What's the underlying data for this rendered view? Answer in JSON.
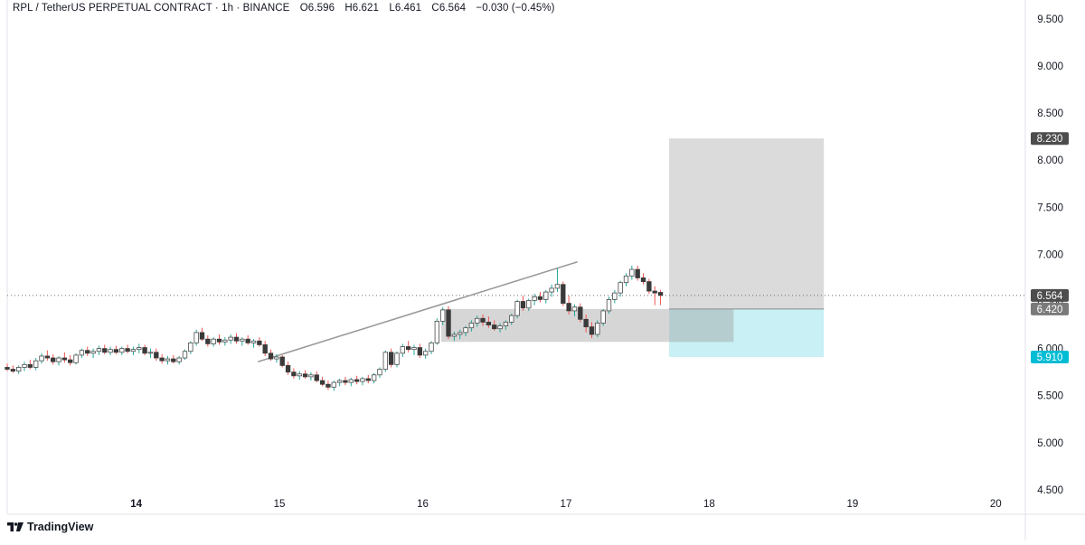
{
  "legend": {
    "symbol": "RPL / TetherUS PERPETUAL CONTRACT · 1h · BINANCE",
    "open_key": "O",
    "open": "6.596",
    "high_key": "H",
    "high": "6.621",
    "low_key": "L",
    "low": "6.461",
    "close_key": "C",
    "close": "6.564",
    "change": "−0.030 (−0.45%)"
  },
  "brand": {
    "name": "TradingView",
    "icon": "tradingview-logo-icon"
  },
  "colors": {
    "up_body": "#ffffff",
    "up_border": "#4a4a4a",
    "up_wick": "#26a69a",
    "down_body": "#3a3a3a",
    "down_wick": "#ef5350",
    "target_zone": "#d9d9d9",
    "stop_zone": "#c8f0f5",
    "range_box": "#d4d4d4",
    "price_tag_dark": "#4d4d4d",
    "price_tag_cyan": "#00bcd4",
    "trendline": "#9a9a9a",
    "grid": "#e8e8e8"
  },
  "chart_data": {
    "type": "candlestick",
    "instrument": "RPL / TetherUS PERPETUAL CONTRACT",
    "interval": "1h",
    "exchange": "BINANCE",
    "xlim": [
      13.1,
      20.2
    ],
    "ylim": [
      4.25,
      9.7
    ],
    "x_ticks": [
      {
        "value": 14,
        "label": "14"
      },
      {
        "value": 15,
        "label": "15"
      },
      {
        "value": 16,
        "label": "16"
      },
      {
        "value": 17,
        "label": "17"
      },
      {
        "value": 18,
        "label": "18"
      },
      {
        "value": 19,
        "label": "19"
      },
      {
        "value": 20,
        "label": "20"
      }
    ],
    "y_ticks": [
      "4.500",
      "5.000",
      "5.500",
      "6.000",
      "6.500",
      "7.000",
      "7.500",
      "8.000",
      "8.500",
      "9.000",
      "9.500"
    ],
    "y_tick_values": [
      4.5,
      5.0,
      5.5,
      6.0,
      6.5,
      7.0,
      7.5,
      8.0,
      8.5,
      9.0,
      9.5
    ],
    "candles": [
      [
        13.1,
        5.8,
        5.84,
        5.76,
        5.78
      ],
      [
        13.14,
        5.78,
        5.82,
        5.74,
        5.76
      ],
      [
        13.18,
        5.76,
        5.82,
        5.73,
        5.8
      ],
      [
        13.22,
        5.8,
        5.86,
        5.76,
        5.83
      ],
      [
        13.26,
        5.83,
        5.88,
        5.78,
        5.8
      ],
      [
        13.3,
        5.8,
        5.9,
        5.77,
        5.87
      ],
      [
        13.34,
        5.87,
        5.95,
        5.84,
        5.92
      ],
      [
        13.38,
        5.92,
        5.98,
        5.87,
        5.9
      ],
      [
        13.42,
        5.9,
        5.94,
        5.83,
        5.86
      ],
      [
        13.46,
        5.86,
        5.92,
        5.82,
        5.9
      ],
      [
        13.5,
        5.9,
        5.96,
        5.85,
        5.88
      ],
      [
        13.54,
        5.88,
        5.93,
        5.82,
        5.85
      ],
      [
        13.58,
        5.85,
        5.95,
        5.83,
        5.93
      ],
      [
        13.62,
        5.93,
        6.0,
        5.9,
        5.98
      ],
      [
        13.66,
        5.98,
        6.02,
        5.92,
        5.95
      ],
      [
        13.7,
        5.95,
        6.0,
        5.9,
        5.97
      ],
      [
        13.74,
        5.97,
        6.03,
        5.93,
        6.0
      ],
      [
        13.78,
        6.0,
        6.04,
        5.94,
        5.96
      ],
      [
        13.82,
        5.96,
        6.02,
        5.93,
        5.99
      ],
      [
        13.86,
        5.99,
        6.03,
        5.94,
        5.96
      ],
      [
        13.9,
        5.96,
        6.02,
        5.93,
        6.0
      ],
      [
        13.94,
        6.0,
        6.04,
        5.95,
        5.97
      ],
      [
        13.98,
        5.97,
        6.02,
        5.93,
        5.99
      ],
      [
        14.02,
        5.99,
        6.05,
        5.95,
        6.01
      ],
      [
        14.06,
        6.01,
        6.04,
        5.93,
        5.95
      ],
      [
        14.1,
        5.95,
        6.0,
        5.9,
        5.96
      ],
      [
        14.14,
        5.96,
        6.0,
        5.87,
        5.9
      ],
      [
        14.18,
        5.9,
        5.94,
        5.84,
        5.87
      ],
      [
        14.22,
        5.87,
        5.92,
        5.83,
        5.89
      ],
      [
        14.26,
        5.89,
        5.93,
        5.84,
        5.86
      ],
      [
        14.3,
        5.86,
        5.92,
        5.83,
        5.9
      ],
      [
        14.34,
        5.9,
        5.99,
        5.88,
        5.97
      ],
      [
        14.38,
        5.97,
        6.08,
        5.94,
        6.06
      ],
      [
        14.42,
        6.06,
        6.2,
        6.03,
        6.17
      ],
      [
        14.46,
        6.17,
        6.22,
        6.08,
        6.1
      ],
      [
        14.5,
        6.1,
        6.14,
        6.02,
        6.05
      ],
      [
        14.54,
        6.05,
        6.12,
        6.02,
        6.1
      ],
      [
        14.58,
        6.1,
        6.15,
        6.04,
        6.07
      ],
      [
        14.62,
        6.07,
        6.12,
        6.03,
        6.09
      ],
      [
        14.66,
        6.09,
        6.15,
        6.05,
        6.12
      ],
      [
        14.7,
        6.12,
        6.16,
        6.05,
        6.08
      ],
      [
        14.74,
        6.08,
        6.12,
        6.03,
        6.1
      ],
      [
        14.78,
        6.1,
        6.14,
        6.04,
        6.06
      ],
      [
        14.82,
        6.06,
        6.1,
        6.01,
        6.08
      ],
      [
        14.86,
        6.08,
        6.12,
        6.02,
        6.04
      ],
      [
        14.9,
        6.04,
        6.08,
        5.92,
        5.95
      ],
      [
        14.94,
        5.95,
        5.99,
        5.87,
        5.89
      ],
      [
        14.98,
        5.89,
        5.94,
        5.85,
        5.91
      ],
      [
        15.02,
        5.91,
        5.93,
        5.8,
        5.82
      ],
      [
        15.06,
        5.82,
        5.86,
        5.72,
        5.75
      ],
      [
        15.1,
        5.75,
        5.79,
        5.68,
        5.71
      ],
      [
        15.14,
        5.71,
        5.76,
        5.67,
        5.73
      ],
      [
        15.18,
        5.73,
        5.77,
        5.68,
        5.7
      ],
      [
        15.22,
        5.7,
        5.75,
        5.66,
        5.72
      ],
      [
        15.26,
        5.72,
        5.76,
        5.64,
        5.66
      ],
      [
        15.3,
        5.66,
        5.7,
        5.6,
        5.62
      ],
      [
        15.34,
        5.62,
        5.66,
        5.56,
        5.59
      ],
      [
        15.38,
        5.59,
        5.66,
        5.55,
        5.64
      ],
      [
        15.42,
        5.64,
        5.68,
        5.6,
        5.66
      ],
      [
        15.46,
        5.66,
        5.7,
        5.61,
        5.64
      ],
      [
        15.5,
        5.64,
        5.69,
        5.6,
        5.67
      ],
      [
        15.54,
        5.67,
        5.71,
        5.62,
        5.65
      ],
      [
        15.58,
        5.65,
        5.7,
        5.61,
        5.68
      ],
      [
        15.62,
        5.68,
        5.72,
        5.63,
        5.66
      ],
      [
        15.66,
        5.66,
        5.74,
        5.63,
        5.72
      ],
      [
        15.7,
        5.72,
        5.8,
        5.69,
        5.78
      ],
      [
        15.74,
        5.78,
        5.98,
        5.75,
        5.96
      ],
      [
        15.78,
        5.96,
        6.0,
        5.8,
        5.83
      ],
      [
        15.82,
        5.83,
        5.97,
        5.8,
        5.95
      ],
      [
        15.86,
        5.95,
        6.05,
        5.91,
        6.02
      ],
      [
        15.9,
        6.02,
        6.08,
        5.96,
        5.99
      ],
      [
        15.94,
        5.99,
        6.04,
        5.93,
        6.01
      ],
      [
        15.98,
        6.01,
        6.05,
        5.9,
        5.93
      ],
      [
        16.02,
        5.93,
        6.0,
        5.89,
        5.97
      ],
      [
        16.06,
        5.97,
        6.08,
        5.94,
        6.06
      ],
      [
        16.1,
        6.06,
        6.32,
        6.04,
        6.29
      ],
      [
        16.14,
        6.29,
        6.44,
        6.25,
        6.41
      ],
      [
        16.18,
        6.41,
        6.45,
        6.1,
        6.13
      ],
      [
        16.22,
        6.13,
        6.18,
        6.08,
        6.15
      ],
      [
        16.26,
        6.15,
        6.2,
        6.1,
        6.17
      ],
      [
        16.3,
        6.17,
        6.24,
        6.13,
        6.22
      ],
      [
        16.34,
        6.22,
        6.3,
        6.18,
        6.27
      ],
      [
        16.38,
        6.27,
        6.35,
        6.23,
        6.32
      ],
      [
        16.42,
        6.32,
        6.36,
        6.24,
        6.28
      ],
      [
        16.46,
        6.28,
        6.34,
        6.22,
        6.25
      ],
      [
        16.5,
        6.25,
        6.3,
        6.19,
        6.21
      ],
      [
        16.54,
        6.21,
        6.27,
        6.17,
        6.24
      ],
      [
        16.58,
        6.24,
        6.3,
        6.2,
        6.28
      ],
      [
        16.62,
        6.28,
        6.37,
        6.25,
        6.35
      ],
      [
        16.66,
        6.35,
        6.52,
        6.32,
        6.5
      ],
      [
        16.7,
        6.5,
        6.56,
        6.4,
        6.43
      ],
      [
        16.74,
        6.43,
        6.53,
        6.4,
        6.51
      ],
      [
        16.78,
        6.51,
        6.58,
        6.46,
        6.55
      ],
      [
        16.82,
        6.55,
        6.6,
        6.49,
        6.52
      ],
      [
        16.86,
        6.52,
        6.62,
        6.48,
        6.6
      ],
      [
        16.9,
        6.6,
        6.68,
        6.55,
        6.64
      ],
      [
        16.94,
        6.64,
        6.85,
        6.6,
        6.68
      ],
      [
        16.98,
        6.68,
        6.71,
        6.45,
        6.48
      ],
      [
        17.02,
        6.48,
        6.56,
        6.36,
        6.4
      ],
      [
        17.06,
        6.4,
        6.47,
        6.34,
        6.44
      ],
      [
        17.1,
        6.44,
        6.48,
        6.28,
        6.31
      ],
      [
        17.14,
        6.31,
        6.36,
        6.17,
        6.23
      ],
      [
        17.18,
        6.23,
        6.28,
        6.11,
        6.15
      ],
      [
        17.22,
        6.15,
        6.3,
        6.12,
        6.27
      ],
      [
        17.26,
        6.27,
        6.42,
        6.24,
        6.4
      ],
      [
        17.3,
        6.4,
        6.55,
        6.37,
        6.52
      ],
      [
        17.34,
        6.52,
        6.62,
        6.48,
        6.59
      ],
      [
        17.38,
        6.59,
        6.72,
        6.55,
        6.7
      ],
      [
        17.42,
        6.7,
        6.8,
        6.66,
        6.77
      ],
      [
        17.46,
        6.77,
        6.88,
        6.73,
        6.84
      ],
      [
        17.5,
        6.84,
        6.88,
        6.72,
        6.75
      ],
      [
        17.54,
        6.75,
        6.8,
        6.68,
        6.71
      ],
      [
        17.58,
        6.71,
        6.74,
        6.58,
        6.61
      ],
      [
        17.62,
        6.61,
        6.66,
        6.46,
        6.59
      ],
      [
        17.66,
        6.596,
        6.621,
        6.461,
        6.564
      ]
    ],
    "trendline": {
      "x1": 14.85,
      "y1": 5.86,
      "x2": 17.08,
      "y2": 6.92
    },
    "range_box": {
      "x_start": 16.13,
      "x_end": 18.17,
      "y_low": 6.07,
      "y_high": 6.42
    },
    "position_tool": {
      "type": "long",
      "x_start": 17.72,
      "x_end": 18.8,
      "entry": 6.42,
      "target": 8.23,
      "stop": 5.91
    },
    "current_price": 6.564,
    "price_labels": [
      {
        "value": 8.23,
        "label": "8.230",
        "style": "dark"
      },
      {
        "value": 6.564,
        "label": "6.564",
        "style": "dark"
      },
      {
        "value": 6.42,
        "label": "6.420",
        "style": "gray"
      },
      {
        "value": 5.91,
        "label": "5.910",
        "style": "cyan"
      }
    ]
  }
}
